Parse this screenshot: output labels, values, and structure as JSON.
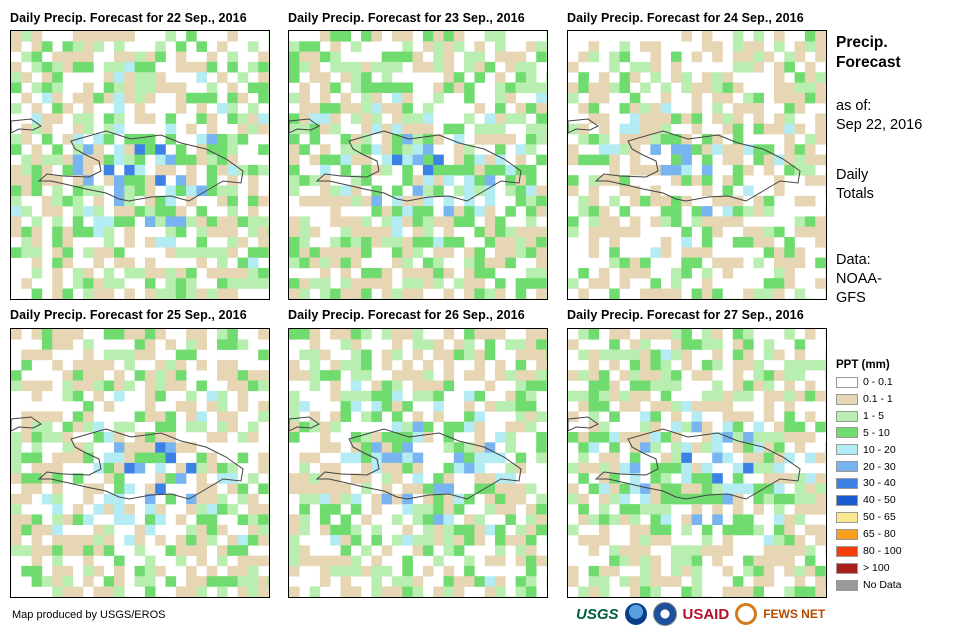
{
  "panels": [
    {
      "title": "Daily Precip. Forecast for 22 Sep., 2016",
      "seed": 11,
      "wet": 0.55
    },
    {
      "title": "Daily Precip. Forecast for 23 Sep., 2016",
      "seed": 23,
      "wet": 0.62
    },
    {
      "title": "Daily Precip. Forecast for 24 Sep., 2016",
      "seed": 37,
      "wet": 0.4
    },
    {
      "title": "Daily Precip. Forecast for 25 Sep., 2016",
      "seed": 41,
      "wet": 0.48
    },
    {
      "title": "Daily Precip. Forecast for 26 Sep., 2016",
      "seed": 53,
      "wet": 0.55
    },
    {
      "title": "Daily Precip. Forecast for 27 Sep., 2016",
      "seed": 67,
      "wet": 0.58
    }
  ],
  "side": {
    "title_line1": "Precip.",
    "title_line2": "Forecast",
    "asof_line1": "as of:",
    "asof_line2": "Sep 22, 2016",
    "totals_line1": "Daily",
    "totals_line2": "Totals",
    "data_line1": "Data:",
    "data_line2": "NOAA-",
    "data_line3": "GFS"
  },
  "legend": {
    "title": "PPT (mm)",
    "items": [
      {
        "label": "0 - 0.1",
        "color": "#ffffff"
      },
      {
        "label": "0.1 - 1",
        "color": "#e6d6b4"
      },
      {
        "label": "1 - 5",
        "color": "#b8eeb0"
      },
      {
        "label": "5 - 10",
        "color": "#70dc70"
      },
      {
        "label": "10 - 20",
        "color": "#b4ecf4"
      },
      {
        "label": "20 - 30",
        "color": "#78b4f0"
      },
      {
        "label": "30 - 40",
        "color": "#3c82e6"
      },
      {
        "label": "40 - 50",
        "color": "#1e5ad2"
      },
      {
        "label": "50 - 65",
        "color": "#fae68c"
      },
      {
        "label": "65 - 80",
        "color": "#faa01e"
      },
      {
        "label": "80 - 100",
        "color": "#fa3c0a"
      },
      {
        "label": "> 100",
        "color": "#aa1e1e"
      },
      {
        "label": "No Data",
        "color": "#999999"
      }
    ]
  },
  "footer": {
    "credit": "Map produced by USGS/EROS",
    "logo_usgs": "USGS",
    "logo_usaid": "USAID",
    "logo_fews": "FEWS NET"
  }
}
